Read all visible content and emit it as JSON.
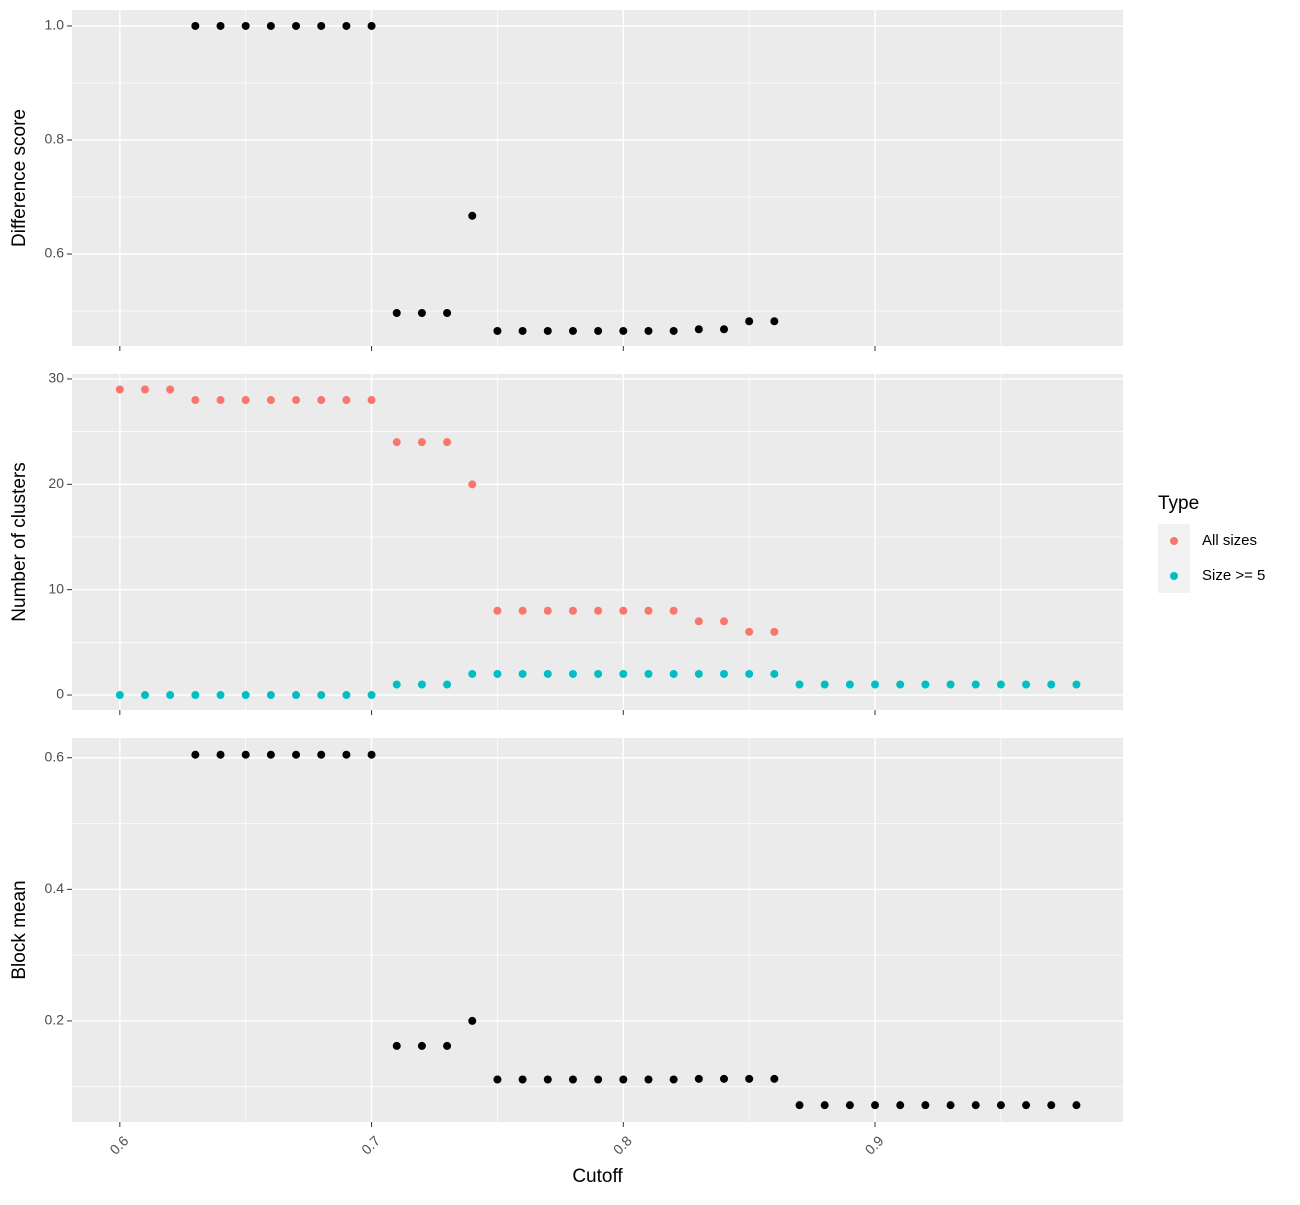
{
  "chart_data": [
    {
      "type": "scatter",
      "ylabel": "Difference score",
      "x": [
        0.63,
        0.64,
        0.65,
        0.66,
        0.67,
        0.68,
        0.69,
        0.7,
        0.71,
        0.72,
        0.73,
        0.74,
        0.75,
        0.76,
        0.77,
        0.78,
        0.79,
        0.8,
        0.81,
        0.82,
        0.83,
        0.84,
        0.85,
        0.86
      ],
      "series": [
        {
          "color": "#000000",
          "values": [
            1,
            1,
            1,
            1,
            1,
            1,
            1,
            1,
            0.4965,
            0.4965,
            0.4965,
            0.667,
            0.465,
            0.465,
            0.465,
            0.465,
            0.465,
            0.465,
            0.465,
            0.465,
            0.468,
            0.468,
            0.482,
            0.482
          ]
        }
      ],
      "xlim": [
        0.581,
        0.9985
      ],
      "xticks": [
        0.6,
        0.7,
        0.8,
        0.9
      ],
      "xminor": [
        0.65,
        0.75,
        0.85,
        0.95
      ],
      "ylim": [
        0.4386,
        1.028
      ],
      "yticks": [
        {
          "value": 1,
          "label": "1.0"
        },
        0.8,
        0.6
      ],
      "yminor": [
        0.5,
        0.7,
        0.9
      ],
      "grid": true
    },
    {
      "type": "scatter",
      "ylabel": "Number of clusters",
      "legend_title": "Type",
      "legend": "right",
      "x": [
        0.6,
        0.61,
        0.62,
        0.63,
        0.64,
        0.65,
        0.66,
        0.67,
        0.68,
        0.69,
        0.7,
        0.71,
        0.72,
        0.73,
        0.74,
        0.75,
        0.76,
        0.77,
        0.78,
        0.79,
        0.8,
        0.81,
        0.82,
        0.83,
        0.84,
        0.85,
        0.86,
        0.87,
        0.88,
        0.89,
        0.9,
        0.91,
        0.92,
        0.93,
        0.94,
        0.95,
        0.96,
        0.97,
        0.98
      ],
      "series": [
        {
          "name": "All sizes",
          "color": "#F8766D",
          "values": [
            29,
            29,
            29,
            28,
            28,
            28,
            28,
            28,
            28,
            28,
            28,
            24,
            24,
            24,
            20,
            8,
            8,
            8,
            8,
            8,
            8,
            8,
            8,
            7,
            7,
            6,
            6,
            null,
            null,
            null,
            null,
            null,
            null,
            null,
            null,
            null,
            null,
            null,
            null
          ]
        },
        {
          "name": "Size >= 5",
          "color": "#00BFC4",
          "values": [
            0,
            0,
            0,
            0,
            0,
            0,
            0,
            0,
            0,
            0,
            0,
            1,
            1,
            1,
            2,
            2,
            2,
            2,
            2,
            2,
            2,
            2,
            2,
            2,
            2,
            2,
            2,
            1,
            1,
            1,
            1,
            1,
            1,
            1,
            1,
            1,
            1,
            1,
            1
          ]
        }
      ],
      "xlim": [
        0.581,
        0.9985
      ],
      "xticks": [
        0.6,
        0.7,
        0.8,
        0.9
      ],
      "xminor": [
        0.65,
        0.75,
        0.85,
        0.95
      ],
      "ylim": [
        -1.42,
        30.47
      ],
      "yticks": [
        30,
        20,
        10,
        0
      ],
      "yminor": [
        5,
        15,
        25
      ],
      "grid": true
    },
    {
      "type": "scatter",
      "ylabel": "Block mean",
      "xlabel": "Cutoff",
      "x": [
        0.63,
        0.64,
        0.65,
        0.66,
        0.67,
        0.68,
        0.69,
        0.7,
        0.71,
        0.72,
        0.73,
        0.74,
        0.75,
        0.76,
        0.77,
        0.78,
        0.79,
        0.8,
        0.81,
        0.82,
        0.83,
        0.84,
        0.85,
        0.86,
        0.87,
        0.88,
        0.89,
        0.9,
        0.91,
        0.92,
        0.93,
        0.94,
        0.95,
        0.96,
        0.97,
        0.98
      ],
      "series": [
        {
          "color": "#000000",
          "values": [
            0.6046,
            0.6046,
            0.6046,
            0.6046,
            0.6046,
            0.6046,
            0.6046,
            0.6046,
            0.162,
            0.162,
            0.162,
            0.2,
            0.111,
            0.111,
            0.111,
            0.111,
            0.111,
            0.111,
            0.111,
            0.111,
            0.112,
            0.112,
            0.112,
            0.112,
            0.072,
            0.072,
            0.072,
            0.072,
            0.072,
            0.072,
            0.072,
            0.072,
            0.072,
            0.072,
            0.072,
            0.072
          ]
        }
      ],
      "xlim": [
        0.581,
        0.9985
      ],
      "xticks": [
        0.6,
        0.7,
        0.8,
        0.9
      ],
      "xminor": [
        0.65,
        0.75,
        0.85,
        0.95
      ],
      "ylim": [
        0.0464,
        0.63
      ],
      "yticks": [
        0.6,
        0.4,
        0.2
      ],
      "yminor": [
        0.1,
        0.3,
        0.5
      ],
      "grid": true
    }
  ]
}
